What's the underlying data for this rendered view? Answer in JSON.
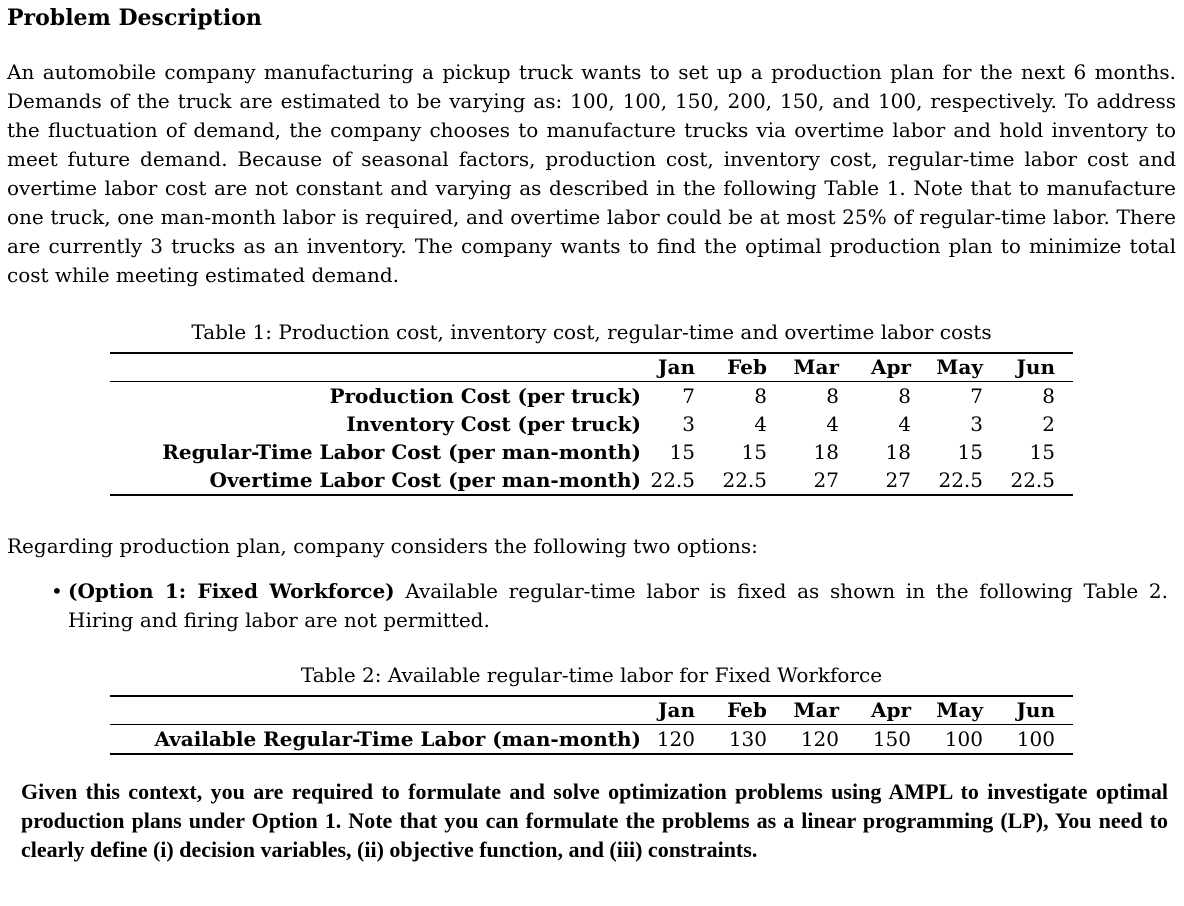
{
  "document": {
    "heading": "Problem Description",
    "intro": "An automobile company manufacturing a pickup truck wants to set up a production plan for the next 6 months. Demands of the truck are estimated to be varying as: 100, 100, 150, 200, 150, and 100, respectively. To address the fluctuation of demand, the company chooses to manufacture trucks via overtime labor and hold inventory to meet future demand. Because of seasonal factors, production cost, inventory cost, regular-time labor cost and overtime labor cost are not constant and varying as described in the following Table 1. Note that to manufacture one truck, one man-month labor is required, and overtime labor could be at most 25% of regular-time labor. There are currently 3 trucks as an inventory. The company wants to find the optimal production plan to minimize total cost while meeting estimated demand.",
    "options_intro": "Regarding production plan, company considers the following two options:",
    "option1": {
      "bullet_glyph": "•",
      "bold_label": "(Option 1: Fixed Workforce)",
      "text": " Available regular-time labor is fixed as shown in the following Table 2. Hiring and firing labor are not permitted."
    },
    "task": "Given this context, you are required to formulate and solve optimization problems using AMPL to investigate optimal production plans under Option 1. Note that you can formulate the problems as a linear programming (LP), You need to clearly define (i) decision variables, (ii) objective function, and (iii) constraints."
  },
  "tables": [
    {
      "caption": "Table 1: Production cost, inventory cost, regular-time and overtime labor costs",
      "columns": [
        "Jan",
        "Feb",
        "Mar",
        "Apr",
        "May",
        "Jun"
      ],
      "rows": [
        {
          "label": "Production Cost (per truck)",
          "values": [
            "7",
            "8",
            "8",
            "8",
            "7",
            "8"
          ]
        },
        {
          "label": "Inventory Cost (per truck)",
          "values": [
            "3",
            "4",
            "4",
            "4",
            "3",
            "2"
          ]
        },
        {
          "label": "Regular-Time Labor Cost (per man-month)",
          "values": [
            "15",
            "15",
            "18",
            "18",
            "15",
            "15"
          ]
        },
        {
          "label": "Overtime Labor Cost (per man-month)",
          "values": [
            "22.5",
            "22.5",
            "27",
            "27",
            "22.5",
            "22.5"
          ]
        }
      ]
    },
    {
      "caption": "Table 2: Available regular-time labor for Fixed Workforce",
      "columns": [
        "Jan",
        "Feb",
        "Mar",
        "Apr",
        "May",
        "Jun"
      ],
      "rows": [
        {
          "label": "Available Regular-Time Labor (man-month)",
          "values": [
            "120",
            "130",
            "120",
            "150",
            "100",
            "100"
          ]
        }
      ]
    }
  ]
}
